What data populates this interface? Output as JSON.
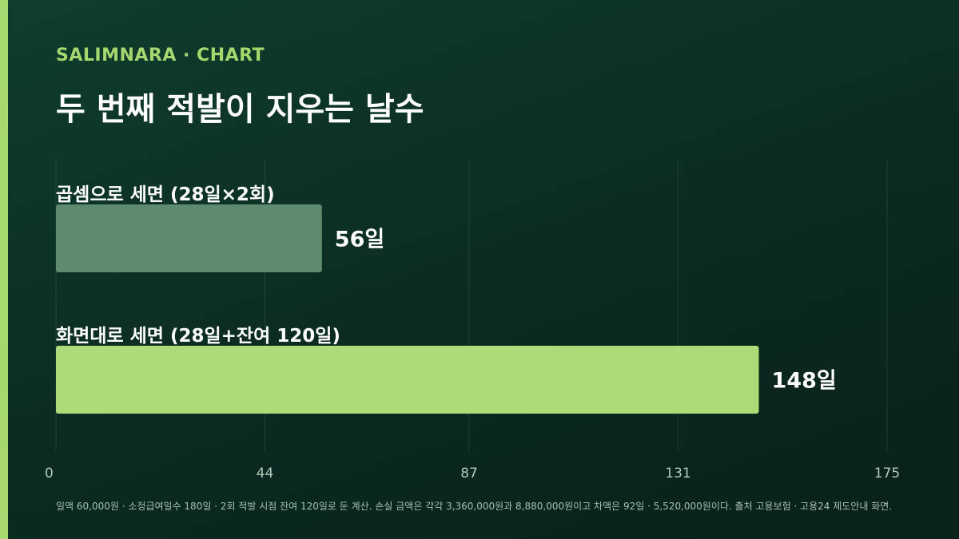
{
  "header": {
    "brand": "SALIMNARA · CHART",
    "title": "두 번째 적발이 지우는 날수"
  },
  "colors": {
    "accent": "#a6d86f",
    "bar_primary": "#addb78",
    "bar_secondary": "#5e8b6e"
  },
  "chart_data": {
    "type": "bar",
    "orientation": "horizontal",
    "categories": [
      "곱셈으로 세면 (28일×2회)",
      "화면대로 세면 (28일+잔여 120일)"
    ],
    "values": [
      56,
      148
    ],
    "value_labels": [
      "56일",
      "148일"
    ],
    "xlim": [
      0,
      175
    ],
    "xticks": [
      0,
      44,
      87,
      131,
      175
    ],
    "grid": true
  },
  "footnote": "일액 60,000원 · 소정급여일수 180일 · 2회 적발 시점 잔여 120일로 둔 계산. 손실 금액은 각각 3,360,000원과 8,880,000원이고 차액은 92일 · 5,520,000원이다. 출처 고용보험 · 고용24 제도안내 화면."
}
